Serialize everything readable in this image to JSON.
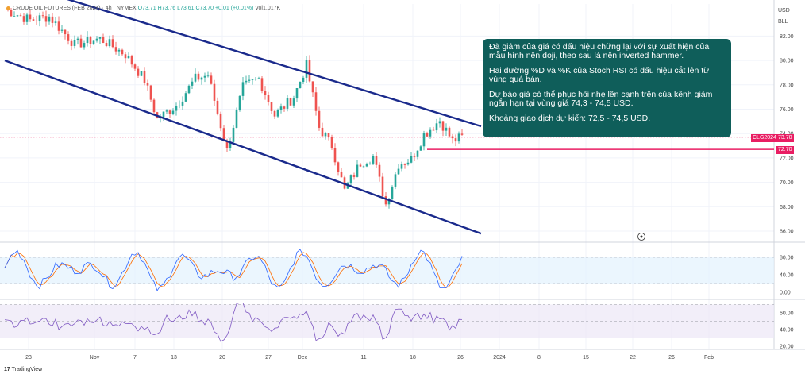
{
  "header": {
    "symbol_line": "CRUDE OIL FUTURES (FEB 2024) · 4h · NYMEX",
    "open": "O73.71",
    "high": "H73.76",
    "low": "L73.61",
    "close": "C73.70",
    "change": "+0.01 (+0.01%)",
    "volume": "Vol1.017K"
  },
  "currency": [
    "USD",
    "BLL"
  ],
  "note": {
    "p1": "Đà giảm của giá có dấu hiệu chững lại với sự xuất hiện của mẫu hình nến doji, theo sau là nến inverted hammer.",
    "p2": "Hai đường %D và %K của Stoch RSI có dấu hiệu cắt lên từ vùng quá bán.",
    "p3": "Dự báo giá có thể phục hồi nhẹ lên cạnh trên của kênh giảm ngắn hạn tại vùng giá 74,3 - 74,5 USD.",
    "p4": "Khoảng giao dịch dự kiến: 72,5 - 74,5 USD."
  },
  "price_tags": {
    "symbol_tag": "CLG2024",
    "last_price": "73.70",
    "support_price": "72.70"
  },
  "footer": "TradingView",
  "colors": {
    "up": "#26a69a",
    "down": "#ef5350",
    "channel": "#1a2a8c",
    "support": "#e91e63",
    "note_bg": "#0f5e5a",
    "stoch_k": "#2962ff",
    "stoch_d": "#ff6d00",
    "rsi": "#7e57c2"
  },
  "chart_data": {
    "type": "candlestick",
    "symbol": "CLG2024",
    "price_axis": {
      "ticks": [
        66,
        68,
        70,
        72,
        74,
        76,
        78,
        80,
        82
      ],
      "ylim": [
        65,
        84
      ]
    },
    "time_axis": {
      "ticks": [
        "23",
        "Nov",
        "7",
        "13",
        "20",
        "27",
        "Dec",
        "11",
        "18",
        "26",
        "2024",
        "8",
        "15",
        "22",
        "26",
        "Feb"
      ]
    },
    "candle_count": 144,
    "waypoints": [
      {
        "i": 0,
        "price": 84.2
      },
      {
        "i": 8,
        "price": 83.3
      },
      {
        "i": 14,
        "price": 83.6
      },
      {
        "i": 22,
        "price": 81.3
      },
      {
        "i": 30,
        "price": 81.8
      },
      {
        "i": 38,
        "price": 80.5
      },
      {
        "i": 44,
        "price": 78.4
      },
      {
        "i": 48,
        "price": 75.2
      },
      {
        "i": 54,
        "price": 76.3
      },
      {
        "i": 60,
        "price": 78.5
      },
      {
        "i": 64,
        "price": 78.8
      },
      {
        "i": 70,
        "price": 72.6
      },
      {
        "i": 75,
        "price": 77.8
      },
      {
        "i": 80,
        "price": 78.5
      },
      {
        "i": 85,
        "price": 75.5
      },
      {
        "i": 91,
        "price": 77.0
      },
      {
        "i": 95,
        "price": 79.6
      },
      {
        "i": 99,
        "price": 74.5
      },
      {
        "i": 103,
        "price": 73.0
      },
      {
        "i": 107,
        "price": 69.3
      },
      {
        "i": 112,
        "price": 71.6
      },
      {
        "i": 116,
        "price": 72.1
      },
      {
        "i": 120,
        "price": 68.2
      },
      {
        "i": 124,
        "price": 71.5
      },
      {
        "i": 128,
        "price": 71.9
      },
      {
        "i": 132,
        "price": 73.9
      },
      {
        "i": 137,
        "price": 75.1
      },
      {
        "i": 141,
        "price": 73.4
      },
      {
        "i": 144,
        "price": 73.7
      }
    ],
    "channel": {
      "upper": [
        {
          "t": 0,
          "price": 86.6
        },
        {
          "t": 150,
          "price": 74.6
        }
      ],
      "lower": [
        {
          "t": 0,
          "price": 80.0
        },
        {
          "t": 150,
          "price": 65.8
        }
      ]
    },
    "support_level": 72.7,
    "last_price": 73.7,
    "stoch_rsi": {
      "ylim": [
        0,
        100
      ],
      "ticks": [
        0,
        40,
        80
      ],
      "bands": [
        20,
        80
      ]
    },
    "rsi": {
      "ylim": [
        18,
        80
      ],
      "ticks": [
        20,
        40,
        60
      ],
      "bands": [
        30,
        50,
        70
      ]
    }
  }
}
